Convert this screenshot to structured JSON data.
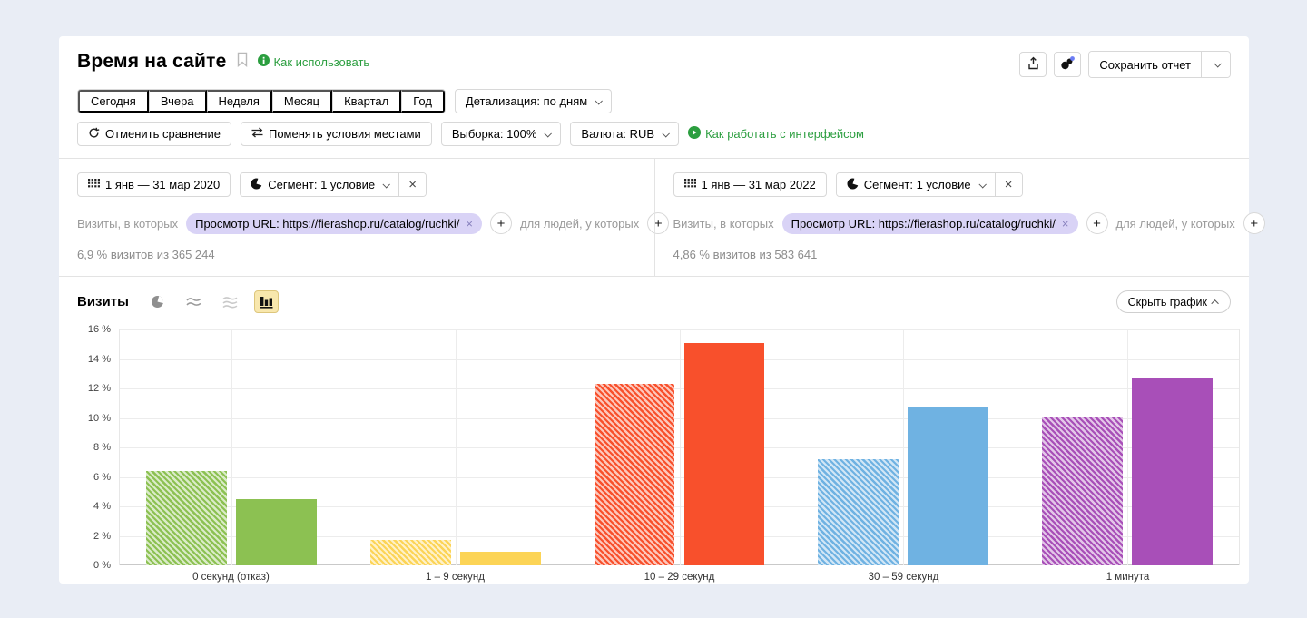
{
  "page": {
    "background": "#e9edf5",
    "card_background": "#ffffff",
    "accent_green": "#2b9e3f",
    "chip_background": "#d9d3f6"
  },
  "header": {
    "title": "Время на сайте",
    "how_to_use_link": "Как использовать",
    "save_report_label": "Сохранить отчет"
  },
  "period_tabs": {
    "items": [
      "Сегодня",
      "Вчера",
      "Неделя",
      "Месяц",
      "Квартал",
      "Год"
    ],
    "detail_label": "Детализация: по дням"
  },
  "toolbar": {
    "cancel_comparison": "Отменить сравнение",
    "swap_conditions": "Поменять условия местами",
    "sampling": "Выборка: 100%",
    "currency": "Валюта: RUB",
    "interface_help_link": "Как работать с интерфейсом"
  },
  "comparison": {
    "panels": [
      {
        "date_range": "1 янв — 31 мар 2020",
        "segment": "Сегмент: 1 условие",
        "visits_prefix": "Визиты, в которых",
        "condition_chip": "Просмотр URL: https://fierashop.ru/catalog/ruchki/",
        "people_prefix": "для людей, у которых",
        "summary": "6,9 % визитов из 365 244"
      },
      {
        "date_range": "1 янв — 31 мар 2022",
        "segment": "Сегмент: 1 условие",
        "visits_prefix": "Визиты, в которых",
        "condition_chip": "Просмотр URL: https://fierashop.ru/catalog/ruchki/",
        "people_prefix": "для людей, у которых",
        "summary": "4,86 % визитов из 583 641"
      }
    ]
  },
  "chart_section": {
    "metric_title": "Визиты",
    "hide_chart_label": "Скрыть график"
  },
  "icons": {
    "remove_glyph": "×",
    "plus_glyph": "+",
    "chip_remove_glyph": "×"
  },
  "chart_data": {
    "type": "bar",
    "title": "Визиты",
    "categories": [
      "0 секунд (отказ)",
      "1 – 9 секунд",
      "10 – 29 секунд",
      "30 – 59 секунд",
      "1 минута"
    ],
    "series": [
      {
        "name": "1 янв — 31 мар 2020",
        "style": "hatched",
        "values": [
          6.4,
          1.7,
          12.3,
          7.2,
          10.1
        ]
      },
      {
        "name": "1 янв — 31 мар 2022",
        "style": "solid",
        "values": [
          4.5,
          0.9,
          15.1,
          10.8,
          12.7
        ]
      }
    ],
    "category_colors": [
      "#8cc152",
      "#fcd456",
      "#f8502c",
      "#6fb2e2",
      "#a84fb8"
    ],
    "ylim": [
      0,
      16
    ],
    "ytick_step": 2,
    "ytick_suffix": " %",
    "grid": true,
    "legend_position": "none"
  }
}
